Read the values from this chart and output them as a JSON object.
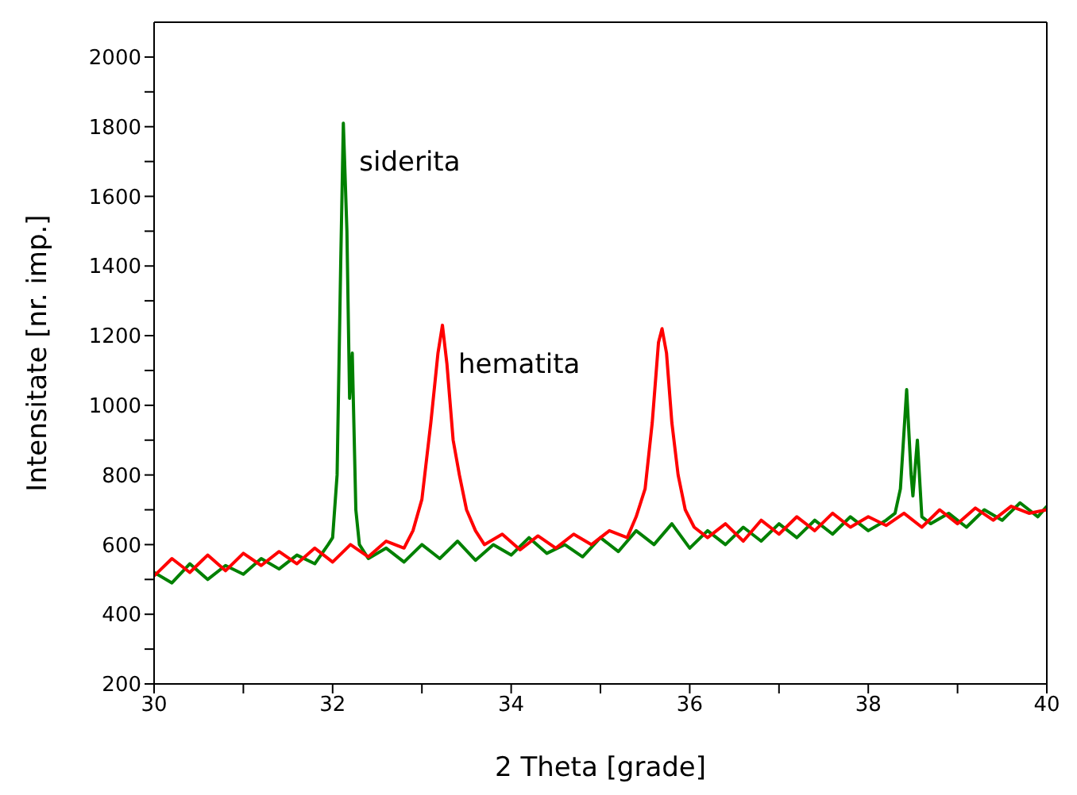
{
  "chart_data": {
    "type": "line",
    "xlabel": "2 Theta  [grade]",
    "ylabel": "Intensitate [nr. imp.]",
    "xlim": [
      30,
      40
    ],
    "xticks": [
      30,
      {
        "value": 31,
        "label": null
      },
      32,
      {
        "value": 33,
        "label": null
      },
      34,
      {
        "value": 35,
        "label": null
      },
      36,
      {
        "value": 37,
        "label": null
      },
      38,
      {
        "value": 39,
        "label": null
      },
      40
    ],
    "ylim": [
      200,
      2100
    ],
    "yticks": [
      200,
      {
        "value": 300,
        "label": null
      },
      400,
      {
        "value": 500,
        "label": null
      },
      600,
      {
        "value": 700,
        "label": null
      },
      800,
      {
        "value": 900,
        "label": null
      },
      1000,
      {
        "value": 1100,
        "label": null
      },
      1200,
      {
        "value": 1300,
        "label": null
      },
      1400,
      {
        "value": 1500,
        "label": null
      },
      1600,
      {
        "value": 1700,
        "label": null
      },
      1800,
      {
        "value": 1900,
        "label": null
      },
      2000
    ],
    "marker": "none",
    "line_style": "solid",
    "series": [
      {
        "name": "siderita",
        "color": "#008000",
        "x": [
          30.0,
          30.2,
          30.4,
          30.6,
          30.8,
          31.0,
          31.2,
          31.4,
          31.6,
          31.8,
          31.95,
          32.0,
          32.05,
          32.09,
          32.12,
          32.16,
          32.19,
          32.22,
          32.26,
          32.3,
          32.4,
          32.6,
          32.8,
          33.0,
          33.2,
          33.4,
          33.6,
          33.8,
          34.0,
          34.2,
          34.4,
          34.6,
          34.8,
          35.0,
          35.2,
          35.4,
          35.6,
          35.8,
          36.0,
          36.2,
          36.4,
          36.6,
          36.8,
          37.0,
          37.2,
          37.4,
          37.6,
          37.8,
          38.0,
          38.2,
          38.3,
          38.36,
          38.43,
          38.48,
          38.5,
          38.55,
          38.6,
          38.7,
          38.9,
          39.1,
          39.3,
          39.5,
          39.7,
          39.9,
          40.0
        ],
        "values": [
          520,
          490,
          545,
          500,
          540,
          515,
          560,
          530,
          570,
          545,
          600,
          620,
          800,
          1400,
          1810,
          1500,
          1020,
          1150,
          700,
          600,
          560,
          590,
          550,
          600,
          560,
          610,
          555,
          600,
          570,
          620,
          575,
          600,
          565,
          620,
          580,
          640,
          600,
          660,
          590,
          640,
          600,
          650,
          610,
          660,
          620,
          670,
          630,
          680,
          640,
          670,
          690,
          760,
          1045,
          800,
          740,
          900,
          680,
          660,
          690,
          650,
          700,
          670,
          720,
          680,
          710
        ]
      },
      {
        "name": "hematita",
        "color": "#ff0000",
        "x": [
          30.0,
          30.2,
          30.4,
          30.6,
          30.8,
          31.0,
          31.2,
          31.4,
          31.6,
          31.8,
          32.0,
          32.2,
          32.4,
          32.6,
          32.8,
          32.9,
          33.0,
          33.1,
          33.18,
          33.23,
          33.28,
          33.35,
          33.42,
          33.5,
          33.6,
          33.7,
          33.9,
          34.1,
          34.3,
          34.5,
          34.7,
          34.9,
          35.1,
          35.3,
          35.4,
          35.5,
          35.58,
          35.65,
          35.69,
          35.74,
          35.8,
          35.87,
          35.95,
          36.05,
          36.2,
          36.4,
          36.6,
          36.8,
          37.0,
          37.2,
          37.4,
          37.6,
          37.8,
          38.0,
          38.2,
          38.4,
          38.6,
          38.8,
          39.0,
          39.2,
          39.4,
          39.6,
          39.8,
          40.0
        ],
        "values": [
          510,
          560,
          520,
          570,
          525,
          575,
          540,
          580,
          545,
          590,
          550,
          600,
          565,
          610,
          590,
          640,
          730,
          950,
          1150,
          1230,
          1120,
          900,
          800,
          700,
          640,
          600,
          630,
          585,
          625,
          590,
          630,
          600,
          640,
          620,
          680,
          760,
          950,
          1180,
          1220,
          1150,
          950,
          800,
          700,
          650,
          620,
          660,
          610,
          670,
          630,
          680,
          640,
          690,
          650,
          680,
          655,
          690,
          650,
          700,
          660,
          705,
          670,
          710,
          690,
          700
        ]
      }
    ]
  }
}
